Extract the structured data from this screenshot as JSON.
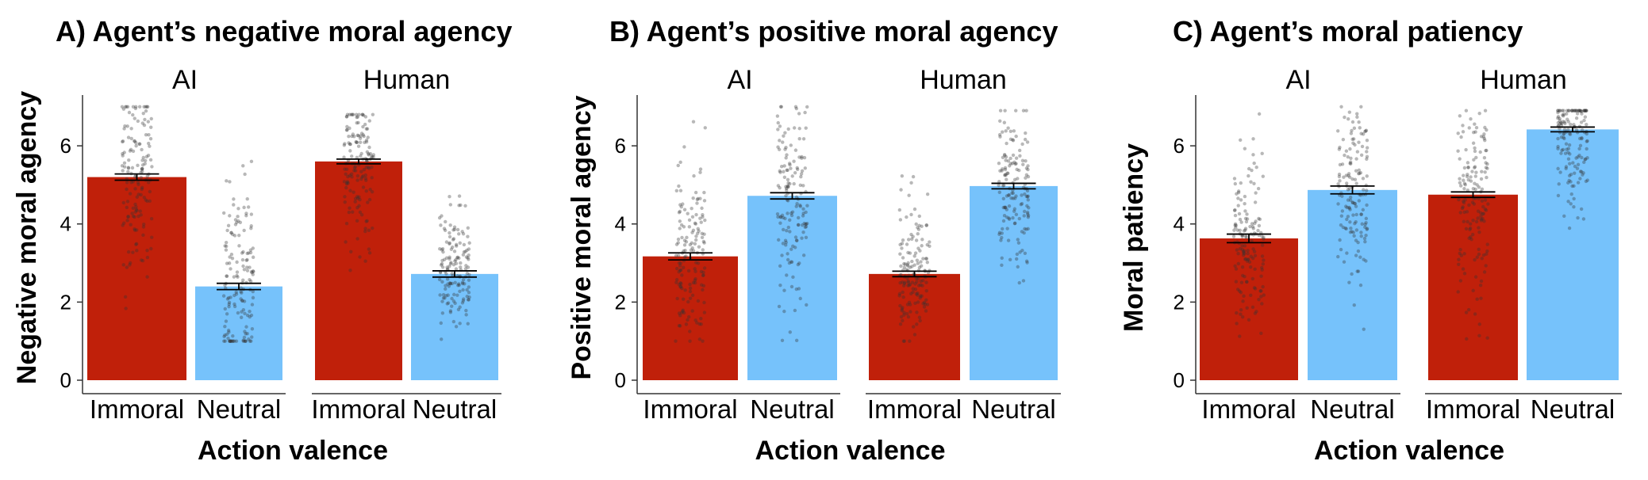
{
  "chart_data": [
    {
      "type": "bar",
      "title": "A) Agent’s negative moral agency",
      "xlabel": "Action valence",
      "ylabel": "Negative moral agency",
      "facets": [
        "AI",
        "Human"
      ],
      "categories": [
        "Immoral",
        "Neutral"
      ],
      "series": [
        {
          "facet": "AI",
          "values": [
            5.2,
            2.4
          ],
          "errors": [
            0.08,
            0.08
          ]
        },
        {
          "facet": "Human",
          "values": [
            5.6,
            2.72
          ],
          "errors": [
            0.06,
            0.08
          ]
        }
      ],
      "jitter_range": [
        [
          [
            1.4,
            7.0
          ],
          [
            1.0,
            6.3
          ]
        ],
        [
          [
            2.8,
            6.8
          ],
          [
            1.0,
            5.3
          ]
        ]
      ],
      "ylim": [
        0,
        7.3
      ],
      "yticks": [
        0,
        2,
        4,
        6
      ],
      "colors": {
        "Immoral": "#c0200a",
        "Neutral": "#76c2fb"
      },
      "grid": false
    },
    {
      "type": "bar",
      "title": "B) Agent’s positive moral agency",
      "xlabel": "Action valence",
      "ylabel": "Positive moral agency",
      "facets": [
        "AI",
        "Human"
      ],
      "categories": [
        "Immoral",
        "Neutral"
      ],
      "series": [
        {
          "facet": "AI",
          "values": [
            3.17,
            4.72
          ],
          "errors": [
            0.09,
            0.08
          ]
        },
        {
          "facet": "Human",
          "values": [
            2.72,
            4.97
          ],
          "errors": [
            0.07,
            0.07
          ]
        }
      ],
      "jitter_range": [
        [
          [
            1.0,
            7.0
          ],
          [
            1.0,
            7.0
          ]
        ],
        [
          [
            1.0,
            5.3
          ],
          [
            2.0,
            6.9
          ]
        ]
      ],
      "ylim": [
        0,
        7.3
      ],
      "yticks": [
        0,
        2,
        4,
        6
      ],
      "colors": {
        "Immoral": "#c0200a",
        "Neutral": "#76c2fb"
      },
      "grid": false
    },
    {
      "type": "bar",
      "title": "C) Agent’s moral patiency",
      "xlabel": "Action valence",
      "ylabel": "Moral patiency",
      "facets": [
        "AI",
        "Human"
      ],
      "categories": [
        "Immoral",
        "Neutral"
      ],
      "series": [
        {
          "facet": "AI",
          "values": [
            3.63,
            4.87
          ],
          "errors": [
            0.11,
            0.1
          ]
        },
        {
          "facet": "Human",
          "values": [
            4.75,
            6.42
          ],
          "errors": [
            0.07,
            0.06
          ]
        }
      ],
      "jitter_range": [
        [
          [
            1.0,
            7.0
          ],
          [
            1.0,
            7.0
          ]
        ],
        [
          [
            1.0,
            6.9
          ],
          [
            3.8,
            6.9
          ]
        ]
      ],
      "ylim": [
        0,
        7.3
      ],
      "yticks": [
        0,
        2,
        4,
        6
      ],
      "colors": {
        "Immoral": "#c0200a",
        "Neutral": "#76c2fb"
      },
      "grid": false
    }
  ]
}
